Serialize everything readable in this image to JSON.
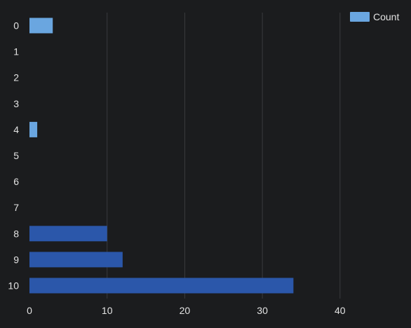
{
  "chart_data": {
    "type": "bar",
    "orientation": "horizontal",
    "categories": [
      "0",
      "1",
      "2",
      "3",
      "4",
      "5",
      "6",
      "7",
      "8",
      "9",
      "10"
    ],
    "series": [
      {
        "name": "Count",
        "values": [
          3,
          0,
          0,
          0,
          1,
          0,
          0,
          0,
          10,
          12,
          34
        ]
      }
    ],
    "bar_colors": [
      "#6aa6e0",
      "#6aa6e0",
      "#6aa6e0",
      "#6aa6e0",
      "#6aa6e0",
      "#6aa6e0",
      "#6aa6e0",
      "#6aa6e0",
      "#2b57aa",
      "#2b57aa",
      "#2b57aa"
    ],
    "legend_color": "#6aa6e0",
    "xlim": [
      0,
      49
    ],
    "xticks": [
      0,
      10,
      20,
      30,
      40
    ],
    "grid": "vertical",
    "grid_color": "#3a3b3e",
    "legend_position": "top-right",
    "background": "#1b1c1e"
  }
}
